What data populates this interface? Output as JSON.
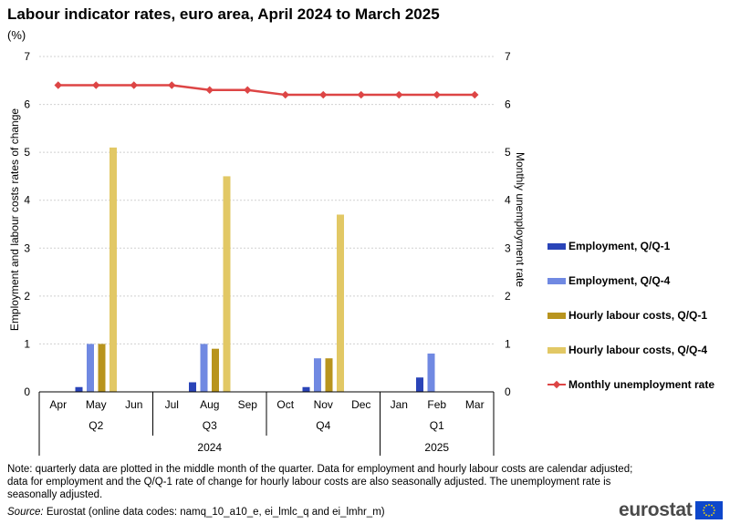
{
  "title": "Labour indicator rates, euro area, April 2024 to March 2025",
  "unit": "(%)",
  "chart_data": {
    "type": "bar",
    "categories": [
      "Apr",
      "May",
      "Jun",
      "Jul",
      "Aug",
      "Sep",
      "Oct",
      "Nov",
      "Dec",
      "Jan",
      "Feb",
      "Mar"
    ],
    "quarter_groups": [
      {
        "label": "Q2",
        "months": 3
      },
      {
        "label": "Q3",
        "months": 3
      },
      {
        "label": "Q4",
        "months": 3
      },
      {
        "label": "Q1",
        "months": 3
      }
    ],
    "year_groups": [
      {
        "label": "2024",
        "months": 9
      },
      {
        "label": "2025",
        "months": 3
      }
    ],
    "ylabel": "Employment and labour costs rates of change",
    "y2label": "Monthly  unemployment  rate",
    "ylim": [
      0,
      7
    ],
    "y2lim": [
      0,
      7
    ],
    "yticks": [
      0,
      1,
      2,
      3,
      4,
      5,
      6,
      7
    ],
    "grid": true,
    "legend_position": "right",
    "series": [
      {
        "name": "Employment, Q/Q-1",
        "type": "bar",
        "color": "#2a44b8",
        "values": [
          null,
          0.1,
          null,
          null,
          0.2,
          null,
          null,
          0.1,
          null,
          null,
          0.3,
          null
        ]
      },
      {
        "name": "Employment, Q/Q-4",
        "type": "bar",
        "color": "#7089e2",
        "values": [
          null,
          1.0,
          null,
          null,
          1.0,
          null,
          null,
          0.7,
          null,
          null,
          0.8,
          null
        ]
      },
      {
        "name": "Hourly labour costs, Q/Q-1",
        "type": "bar",
        "color": "#b8941e",
        "values": [
          null,
          1.0,
          null,
          null,
          0.9,
          null,
          null,
          0.7,
          null,
          null,
          null,
          null
        ]
      },
      {
        "name": "Hourly labour costs, Q/Q-4",
        "type": "bar",
        "color": "#e2c865",
        "values": [
          null,
          5.1,
          null,
          null,
          4.5,
          null,
          null,
          3.7,
          null,
          null,
          null,
          null
        ]
      },
      {
        "name": "Monthly unemployment rate",
        "type": "line",
        "axis": "right",
        "color": "#dd4545",
        "values": [
          6.4,
          6.4,
          6.4,
          6.4,
          6.3,
          6.3,
          6.2,
          6.2,
          6.2,
          6.2,
          6.2,
          6.2
        ]
      }
    ]
  },
  "note": "Note: quarterly data are plotted in the middle month of the quarter. Data for employment and hourly labour costs are calendar adjusted; data for employment  and the Q/Q-1 rate of change for hourly labour costs are also seasonally adjusted. The unemployment  rate is seasonally adjusted.",
  "source_label": "Source:",
  "source_text": " Eurostat (online data codes: namq_10_a10_e, ei_lmlc_q and ei_lmhr_m)",
  "logo_text": "eurostat",
  "colors": {
    "grid": "#d0d0d0",
    "axis": "#000000",
    "flag_blue": "#0e47cb",
    "flag_star": "#ffde00"
  }
}
